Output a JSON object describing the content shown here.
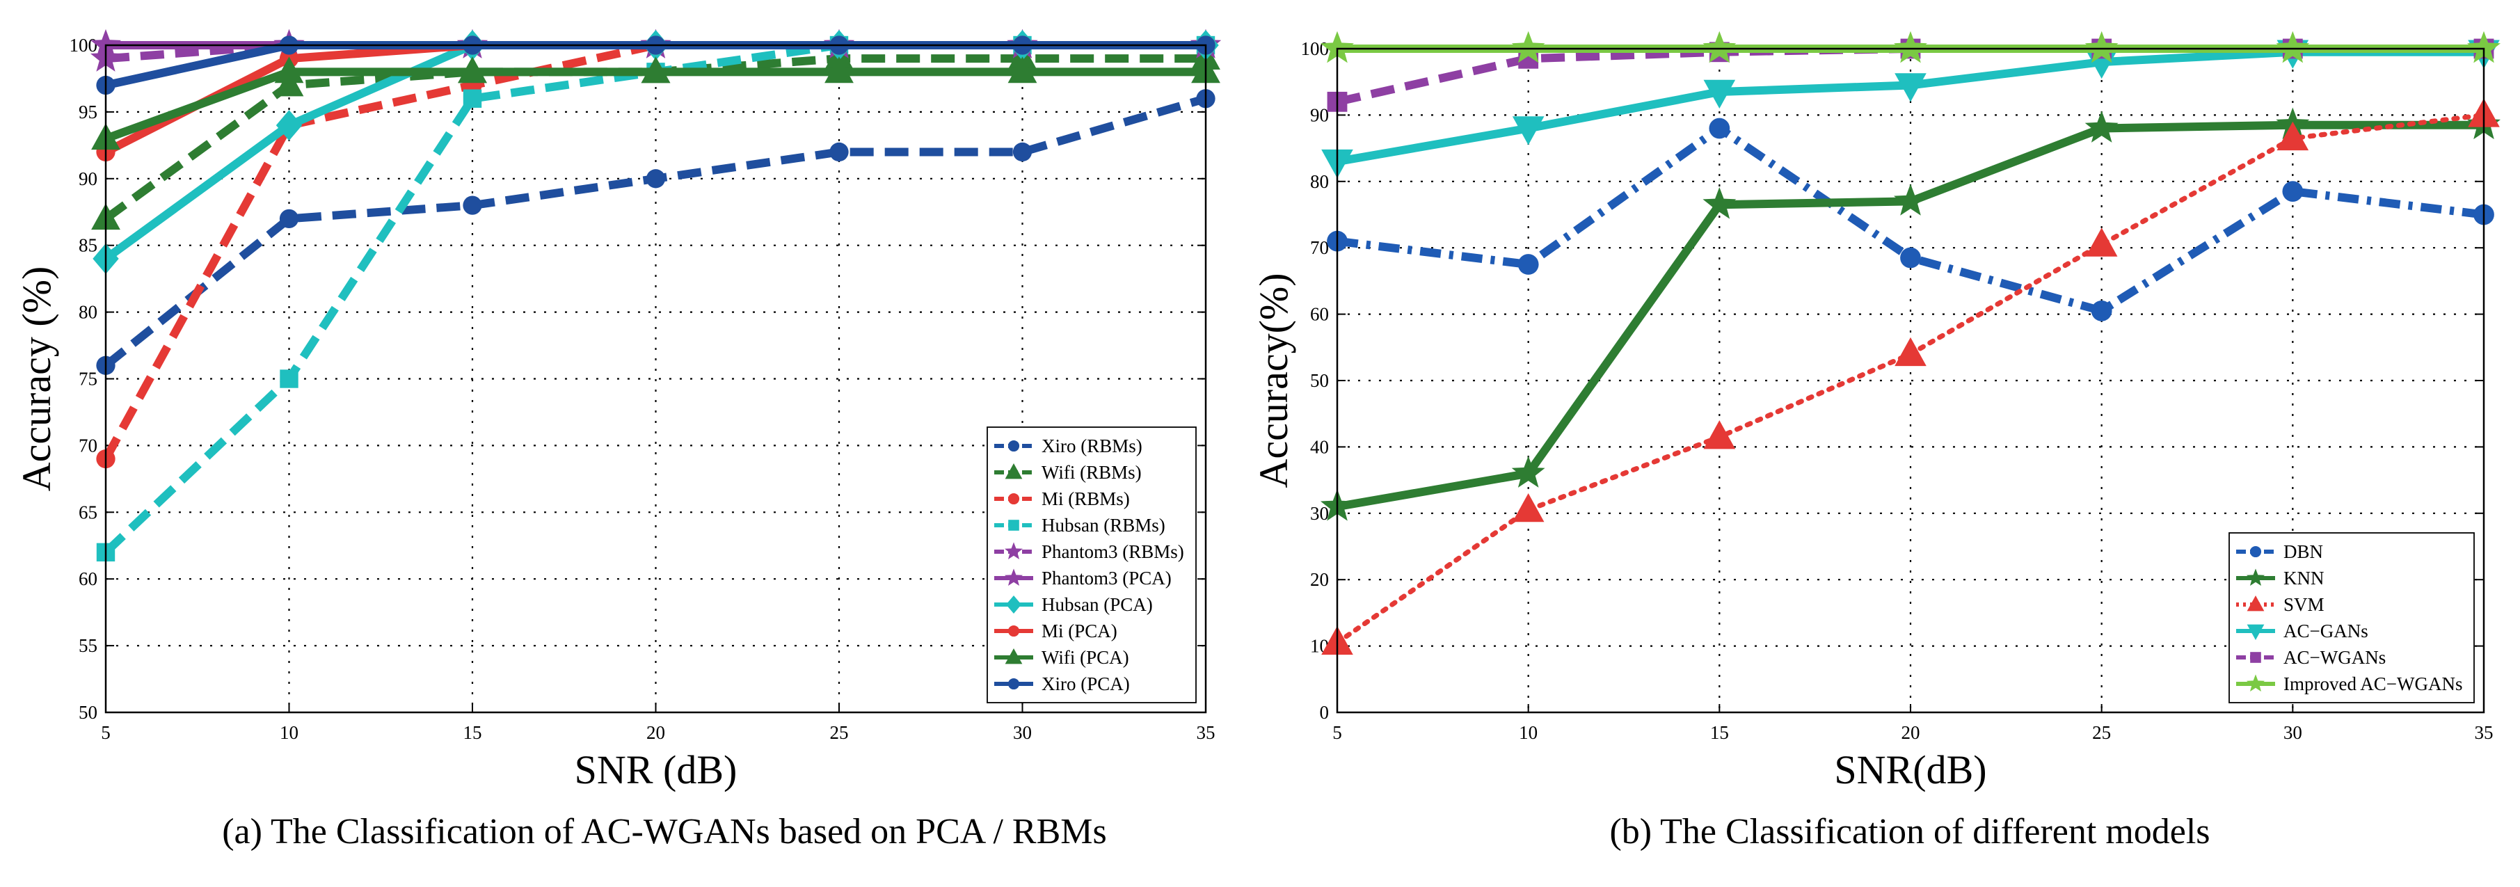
{
  "chart_data": [
    {
      "type": "line",
      "caption": "(a) The Classification of AC-WGANs based on PCA / RBMs",
      "xlabel": "SNR (dB)",
      "ylabel": "Accuracy (%)",
      "x": [
        5,
        10,
        15,
        20,
        25,
        30,
        35
      ],
      "xlim": [
        5,
        35
      ],
      "ylim": [
        50,
        100
      ],
      "xticks": [
        5,
        10,
        15,
        20,
        25,
        30,
        35
      ],
      "yticks": [
        50,
        55,
        60,
        65,
        70,
        75,
        80,
        85,
        90,
        95,
        100
      ],
      "grid": true,
      "legend_position": "lower-right",
      "series": [
        {
          "name": "Xiro (RBMs)",
          "values": [
            76,
            87,
            88,
            90,
            92,
            92,
            96
          ],
          "color": "#1f4e9e",
          "dash": "dashed",
          "marker": "circle"
        },
        {
          "name": "Wifi (RBMs)",
          "values": [
            87,
            97,
            98,
            98,
            99,
            99,
            99
          ],
          "color": "#2e7d32",
          "dash": "dashed",
          "marker": "triangle"
        },
        {
          "name": "Mi (RBMs)",
          "values": [
            69,
            94,
            97,
            100,
            100,
            100,
            100
          ],
          "color": "#e53935",
          "dash": "dashed",
          "marker": "circle"
        },
        {
          "name": "Hubsan (RBMs)",
          "values": [
            62,
            75,
            96,
            98,
            100,
            100,
            100
          ],
          "color": "#1fbfbf",
          "dash": "dashed",
          "marker": "square"
        },
        {
          "name": "Phantom3 (RBMs)",
          "values": [
            99,
            100,
            100,
            100,
            100,
            100,
            100
          ],
          "color": "#8e3fa3",
          "dash": "dashed",
          "marker": "star"
        },
        {
          "name": "Phantom3 (PCA)",
          "values": [
            100,
            100,
            100,
            100,
            100,
            100,
            100
          ],
          "color": "#8e3fa3",
          "dash": "solid",
          "marker": "star"
        },
        {
          "name": "Hubsan (PCA)",
          "values": [
            84,
            94,
            100,
            100,
            100,
            100,
            100
          ],
          "color": "#1fbfbf",
          "dash": "solid",
          "marker": "diamond"
        },
        {
          "name": "Mi (PCA)",
          "values": [
            92,
            99,
            100,
            100,
            100,
            100,
            100
          ],
          "color": "#e53935",
          "dash": "solid",
          "marker": "circle"
        },
        {
          "name": "Wifi (PCA)",
          "values": [
            93,
            98,
            98,
            98,
            98,
            98,
            98
          ],
          "color": "#2e7d32",
          "dash": "solid",
          "marker": "triangle"
        },
        {
          "name": "Xiro (PCA)",
          "values": [
            97,
            100,
            100,
            100,
            100,
            100,
            100
          ],
          "color": "#1f4e9e",
          "dash": "solid",
          "marker": "circle"
        }
      ]
    },
    {
      "type": "line",
      "caption": "(b) The Classification of different models",
      "xlabel": "SNR(dB)",
      "ylabel": "Accuracy(%)",
      "x": [
        5,
        10,
        15,
        20,
        25,
        30,
        35
      ],
      "xlim": [
        5,
        35
      ],
      "ylim": [
        0,
        100
      ],
      "xticks": [
        5,
        10,
        15,
        20,
        25,
        30,
        35
      ],
      "yticks": [
        0,
        10,
        20,
        30,
        40,
        50,
        60,
        70,
        80,
        90,
        100
      ],
      "grid": true,
      "legend_position": "lower-right",
      "series": [
        {
          "name": "DBN",
          "values": [
            71,
            67.5,
            88,
            68.5,
            60.5,
            78.5,
            75
          ],
          "color": "#1f5bb5",
          "dash": "dashdot",
          "marker": "circle"
        },
        {
          "name": "KNN",
          "values": [
            31,
            36,
            76.5,
            77,
            88,
            88.5,
            88.5
          ],
          "color": "#2e7d32",
          "dash": "solid",
          "marker": "star"
        },
        {
          "name": "SVM",
          "values": [
            10.5,
            30.5,
            41.5,
            54,
            70.5,
            86.5,
            90
          ],
          "color": "#e53935",
          "dash": "dotted",
          "marker": "triangle"
        },
        {
          "name": "AC−GANs",
          "values": [
            83,
            88,
            93.5,
            94.5,
            98,
            99.5,
            99.5
          ],
          "color": "#1fbfbf",
          "dash": "solid",
          "marker": "triangle-down"
        },
        {
          "name": "AC−WGANs",
          "values": [
            92,
            98.5,
            99.5,
            100,
            100,
            100,
            100
          ],
          "color": "#8e3fa3",
          "dash": "dashed",
          "marker": "square"
        },
        {
          "name": "Improved AC−WGANs",
          "values": [
            100,
            100,
            100,
            100,
            100,
            100,
            100
          ],
          "color": "#7ac943",
          "dash": "solid",
          "marker": "star"
        }
      ]
    }
  ]
}
